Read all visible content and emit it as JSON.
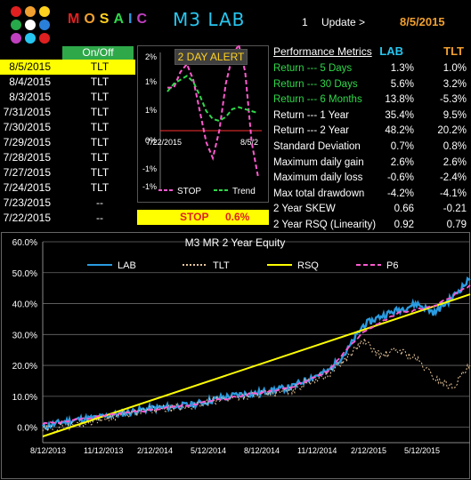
{
  "header": {
    "brand": "MOSAIC",
    "app_title": "M3 LAB",
    "update_number": "1",
    "update_label": "Update >",
    "update_date": "8/5/2015",
    "logo_dot_colors": [
      "#e02020",
      "#f0a030",
      "#ffd21f",
      "#27a84a",
      "#ffffff",
      "#2a7fd8",
      "#c040c0",
      "#27c6f0",
      "#e02020"
    ]
  },
  "signals": {
    "header": "On/Off",
    "rows": [
      {
        "date": "8/5/2015",
        "signal": "TLT"
      },
      {
        "date": "8/4/2015",
        "signal": "TLT"
      },
      {
        "date": "8/3/2015",
        "signal": "TLT"
      },
      {
        "date": "7/31/2015",
        "signal": "TLT"
      },
      {
        "date": "7/30/2015",
        "signal": "TLT"
      },
      {
        "date": "7/29/2015",
        "signal": "TLT"
      },
      {
        "date": "7/28/2015",
        "signal": "TLT"
      },
      {
        "date": "7/27/2015",
        "signal": "TLT"
      },
      {
        "date": "7/24/2015",
        "signal": "TLT"
      },
      {
        "date": "7/23/2015",
        "signal": "--"
      },
      {
        "date": "7/22/2015",
        "signal": "--"
      }
    ]
  },
  "alert": {
    "title": "2 DAY ALERT",
    "stop_label": "STOP",
    "stop_value": "0.6%"
  },
  "metrics": {
    "header": "Performance Metrics",
    "col1": "LAB",
    "col2": "TLT",
    "rows": [
      {
        "label": "Return --- 5 Days",
        "lab": "1.3%",
        "tlt": "1.0%",
        "color": "#2fd84a"
      },
      {
        "label": "Return --- 30 Days",
        "lab": "5.6%",
        "tlt": "3.2%",
        "color": "#2fd84a"
      },
      {
        "label": "Return --- 6 Months",
        "lab": "13.8%",
        "tlt": "-5.3%",
        "color": "#2fd84a"
      },
      {
        "label": "Return --- 1 Year",
        "lab": "35.4%",
        "tlt": "9.5%",
        "color": "#ffffff"
      },
      {
        "label": "Return --- 2 Year",
        "lab": "48.2%",
        "tlt": "20.2%",
        "color": "#ffffff"
      },
      {
        "label": "Standard Deviation",
        "lab": "0.7%",
        "tlt": "0.8%",
        "color": "#ffffff"
      },
      {
        "label": "Maximum daily gain",
        "lab": "2.6%",
        "tlt": "2.6%",
        "color": "#ffffff"
      },
      {
        "label": "Maximum daily loss",
        "lab": "-0.6%",
        "tlt": "-2.4%",
        "color": "#ffffff"
      },
      {
        "label": "Max total drawdown",
        "lab": "-4.2%",
        "tlt": "-4.1%",
        "color": "#ffffff"
      },
      {
        "label": "2 Year SKEW",
        "lab": "0.66",
        "tlt": "-0.21",
        "color": "#ffffff"
      },
      {
        "label": "2 Year RSQ  (Linearity)",
        "lab": "0.92",
        "tlt": "0.79",
        "color": "#ffffff"
      }
    ]
  },
  "chart_data": [
    {
      "type": "line",
      "title": "",
      "x_ticks": [
        "7/22/2015",
        "8/5/2"
      ],
      "y_ticks": [
        "2%",
        "1%",
        "1%",
        "0%",
        "-1%",
        "-1%"
      ],
      "ylim": [
        -1.5,
        2.0
      ],
      "series": [
        {
          "name": "STOP",
          "color": "#ff5ad0",
          "dash": "dash",
          "values": [
            1.1,
            1.1,
            1.5,
            1.7,
            1.3,
            0.5,
            -0.3,
            -0.7,
            0.0,
            1.2,
            1.9,
            2.2,
            1.5,
            -0.3,
            -1.2
          ]
        },
        {
          "name": "Trend",
          "color": "#2fd84a",
          "dash": "dash",
          "values": [
            1.0,
            1.2,
            1.3,
            1.4,
            1.25,
            0.9,
            0.5,
            0.3,
            0.25,
            0.35,
            0.55,
            0.6,
            0.55,
            0.5,
            0.45
          ]
        }
      ]
    },
    {
      "type": "line",
      "title": "M3 MR   2 Year  Equity",
      "x_ticks": [
        "8/12/2013",
        "11/12/2013",
        "2/12/2014",
        "5/12/2014",
        "8/12/2014",
        "11/12/2014",
        "2/12/2015",
        "5/12/2015"
      ],
      "y_ticks": [
        "0.0%",
        "10.0%",
        "20.0%",
        "30.0%",
        "40.0%",
        "50.0%",
        "60.0%"
      ],
      "ylim": [
        -5,
        60
      ],
      "x_months": [
        0,
        3,
        6,
        9,
        12,
        15,
        18,
        21,
        24
      ],
      "series": [
        {
          "name": "LAB",
          "color": "#2a9be0",
          "points": [
            [
              0,
              0
            ],
            [
              1,
              1.5
            ],
            [
              2,
              2.5
            ],
            [
              3,
              3
            ],
            [
              4,
              4
            ],
            [
              5,
              5
            ],
            [
              6,
              6
            ],
            [
              7,
              6.5
            ],
            [
              8,
              7
            ],
            [
              9,
              8
            ],
            [
              10,
              9.5
            ],
            [
              11,
              10.5
            ],
            [
              12,
              11
            ],
            [
              13,
              12
            ],
            [
              14,
              13
            ],
            [
              15,
              16
            ],
            [
              16,
              18
            ],
            [
              17,
              24
            ],
            [
              18,
              33
            ],
            [
              19,
              36
            ],
            [
              20,
              38
            ],
            [
              21,
              40
            ],
            [
              22,
              37
            ],
            [
              23,
              42
            ],
            [
              24,
              48
            ]
          ]
        },
        {
          "name": "TLT",
          "color": "#e8c69a",
          "points": [
            [
              0,
              -1
            ],
            [
              1,
              0
            ],
            [
              2,
              1
            ],
            [
              3,
              2.5
            ],
            [
              4,
              3.5
            ],
            [
              5,
              4.5
            ],
            [
              6,
              5.5
            ],
            [
              7,
              6
            ],
            [
              8,
              6.5
            ],
            [
              9,
              7.5
            ],
            [
              10,
              9
            ],
            [
              11,
              10
            ],
            [
              12,
              10.5
            ],
            [
              13,
              11
            ],
            [
              14,
              12
            ],
            [
              15,
              15
            ],
            [
              16,
              17
            ],
            [
              17,
              22
            ],
            [
              18,
              28
            ],
            [
              19,
              23
            ],
            [
              20,
              25
            ],
            [
              21,
              22
            ],
            [
              22,
              16
            ],
            [
              23,
              13
            ],
            [
              24,
              20
            ]
          ]
        },
        {
          "name": "RSQ",
          "color": "#ffff00",
          "points": [
            [
              0,
              -3
            ],
            [
              24,
              43
            ]
          ]
        },
        {
          "name": "P6",
          "color": "#ff5ad0",
          "points": [
            [
              0,
              1
            ],
            [
              2,
              2.5
            ],
            [
              4,
              4
            ],
            [
              6,
              5.5
            ],
            [
              8,
              7
            ],
            [
              10,
              9
            ],
            [
              12,
              11
            ],
            [
              14,
              13
            ],
            [
              16,
              18
            ],
            [
              18,
              31
            ],
            [
              20,
              37
            ],
            [
              22,
              39
            ],
            [
              24,
              46
            ]
          ]
        }
      ]
    }
  ]
}
